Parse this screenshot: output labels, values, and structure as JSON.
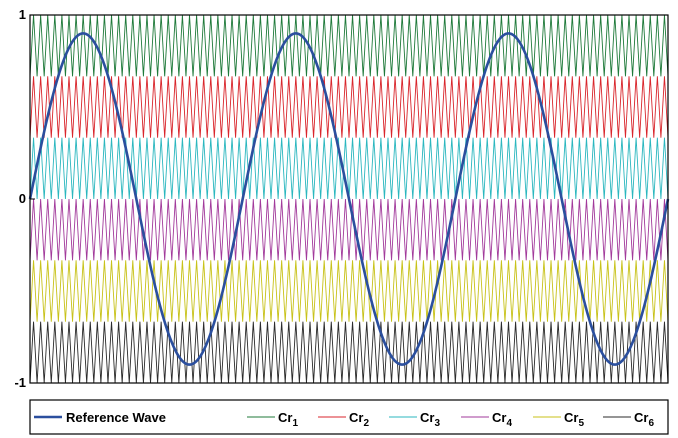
{
  "chart_data": {
    "type": "line",
    "title": "",
    "xlabel": "",
    "ylabel": "",
    "ylim": [
      -1,
      1
    ],
    "yticks": [
      {
        "value": 1,
        "label": "1"
      },
      {
        "value": 0,
        "label": "0"
      },
      {
        "value": -1,
        "label": "-1"
      }
    ],
    "grid": false,
    "legend_position": "bottom",
    "reference": {
      "name": "Reference Wave",
      "amplitude": 0.9,
      "cycles": 3,
      "color": "#2b4f9e"
    },
    "carriers": {
      "cycles": 90,
      "series": [
        {
          "name": "Cr",
          "subscript": "1",
          "low": 0.6667,
          "high": 1.0,
          "color": "#1f7a3a"
        },
        {
          "name": "Cr",
          "subscript": "2",
          "low": 0.3333,
          "high": 0.6667,
          "color": "#d9262c"
        },
        {
          "name": "Cr",
          "subscript": "3",
          "low": 0.0,
          "high": 0.3333,
          "color": "#2bb7bf"
        },
        {
          "name": "Cr",
          "subscript": "4",
          "low": -0.3333,
          "high": 0.0,
          "color": "#a23a9b"
        },
        {
          "name": "Cr",
          "subscript": "5",
          "low": -0.6667,
          "high": -0.3333,
          "color": "#c8c21a"
        },
        {
          "name": "Cr",
          "subscript": "6",
          "low": -1.0,
          "high": -0.6667,
          "color": "#2b2b2b"
        }
      ]
    }
  }
}
